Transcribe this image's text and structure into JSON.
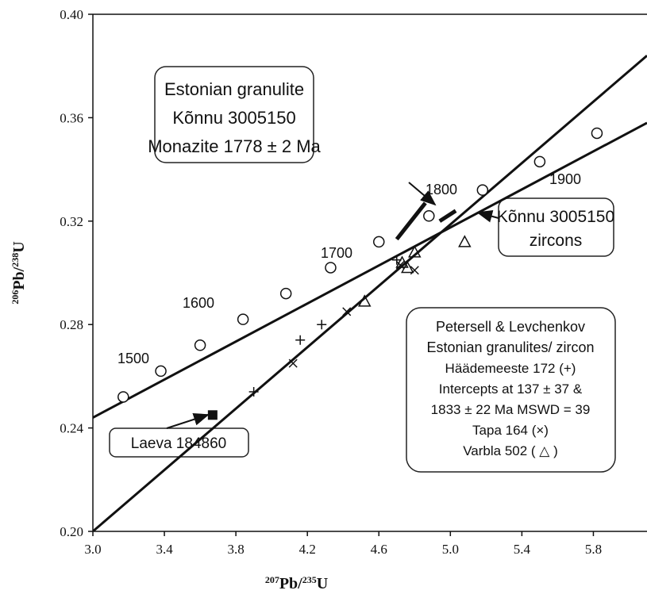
{
  "chart_data": {
    "type": "scatter",
    "xlabel": [
      {
        "text": "207",
        "sup": true
      },
      {
        "text": "Pb/"
      },
      {
        "text": "235",
        "sup": true
      },
      {
        "text": "U"
      }
    ],
    "ylabel": [
      {
        "text": "206",
        "sup": true
      },
      {
        "text": "Pb/"
      },
      {
        "text": "238",
        "sup": true
      },
      {
        "text": "U"
      }
    ],
    "xlim": [
      3.0,
      6.1
    ],
    "ylim": [
      0.2,
      0.4
    ],
    "xticks": [
      {
        "value": 3.0,
        "label": "3.0"
      },
      3.4,
      3.8,
      4.2,
      4.6,
      {
        "value": 5.0,
        "label": "5.0"
      },
      5.4,
      5.8
    ],
    "yticks": [
      {
        "value": 0.2,
        "label": "0.20"
      },
      0.24,
      0.28,
      0.32,
      0.36,
      {
        "value": 0.4,
        "label": "0.40"
      }
    ],
    "lines": [
      {
        "x": [
          3.0,
          6.1
        ],
        "y": [
          0.244,
          0.358
        ],
        "color": "#111111"
      },
      {
        "x": [
          3.0,
          6.1
        ],
        "y": [
          0.2,
          0.384
        ],
        "color": "#111111"
      }
    ],
    "series": [
      {
        "marker": "circle",
        "color": "#111111",
        "x": [
          3.17,
          3.38,
          3.6,
          3.84,
          4.08,
          4.33,
          4.6,
          4.88,
          5.18,
          5.5,
          5.82
        ],
        "y": [
          0.252,
          0.262,
          0.272,
          0.282,
          0.292,
          0.302,
          0.312,
          0.322,
          0.332,
          0.343,
          0.354
        ]
      },
      {
        "marker": "plus",
        "color": "#111111",
        "x": [
          3.9,
          4.16,
          4.28,
          4.7
        ],
        "y": [
          0.254,
          0.274,
          0.28,
          0.305
        ]
      },
      {
        "marker": "cross",
        "color": "#111111",
        "x": [
          4.12,
          4.42,
          4.72,
          4.8
        ],
        "y": [
          0.265,
          0.285,
          0.303,
          0.301
        ]
      },
      {
        "marker": "triangle",
        "color": "#111111",
        "x": [
          4.52,
          4.73,
          4.76,
          4.8,
          5.08
        ],
        "y": [
          0.289,
          0.304,
          0.302,
          0.308,
          0.312
        ]
      },
      {
        "marker": "square",
        "color": "#111111",
        "x": [
          3.67
        ],
        "y": [
          0.245
        ]
      }
    ],
    "segments": [
      {
        "x": [
          4.7,
          4.86
        ],
        "y": [
          0.313,
          0.327
        ]
      },
      {
        "x": [
          4.94,
          5.03
        ],
        "y": [
          0.32,
          0.324
        ]
      }
    ],
    "age_labels": [
      "1500",
      "1600",
      "1700",
      "1800",
      "1900"
    ],
    "monazite_box": [
      "Estonian granulite",
      "Kõnnu 3005150",
      "Monazite 1778  ± 2 Ma"
    ],
    "zircon_box": [
      "Kõnnu 3005150",
      "zircons"
    ],
    "laeva_box": "Laeva 184860",
    "legend_box": [
      "Petersell & Levchenkov",
      "Estonian granulites/ zircon",
      "Häädemeeste 172 (+)",
      "Intercepts at 137 ± 37 &",
      "1833 ± 22  Ma MSWD = 39",
      "Tapa  164 (×)",
      "Varbla  502  ( △ )"
    ]
  }
}
